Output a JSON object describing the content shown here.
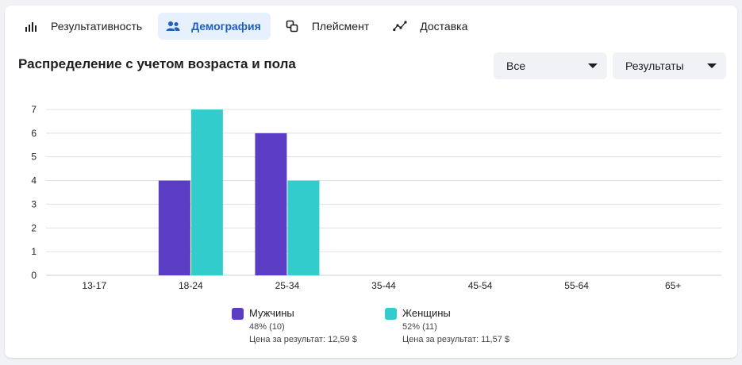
{
  "tabs": [
    {
      "label": "Результативность",
      "icon": "bar-chart-icon",
      "active": false
    },
    {
      "label": "Демография",
      "icon": "people-icon",
      "active": true
    },
    {
      "label": "Плейсмент",
      "icon": "placement-icon",
      "active": false
    },
    {
      "label": "Доставка",
      "icon": "delivery-icon",
      "active": false
    }
  ],
  "section_title": "Распределение с учетом возраста и пола",
  "filters": {
    "audience": "Все",
    "metric": "Результаты"
  },
  "colors": {
    "men": "#5b3cc4",
    "women": "#33cccc",
    "accent": "#1f5fbf",
    "grid": "#dddfe2"
  },
  "legend": [
    {
      "name": "Мужчины",
      "share": "48% (10)",
      "cost": "Цена за результат: 12,59 $"
    },
    {
      "name": "Женщины",
      "share": "52% (11)",
      "cost": "Цена за результат: 11,57 $"
    }
  ],
  "chart_data": {
    "type": "bar",
    "categories": [
      "13-17",
      "18-24",
      "25-34",
      "35-44",
      "45-54",
      "55-64",
      "65+"
    ],
    "series": [
      {
        "name": "Мужчины",
        "values": [
          0,
          4,
          6,
          0,
          0,
          0,
          0
        ]
      },
      {
        "name": "Женщины",
        "values": [
          0,
          7,
          4,
          0,
          0,
          0,
          0
        ]
      }
    ],
    "y_ticks": [
      0,
      1,
      2,
      3,
      4,
      5,
      6,
      7
    ],
    "ylim": [
      0,
      7
    ],
    "grid": true
  }
}
